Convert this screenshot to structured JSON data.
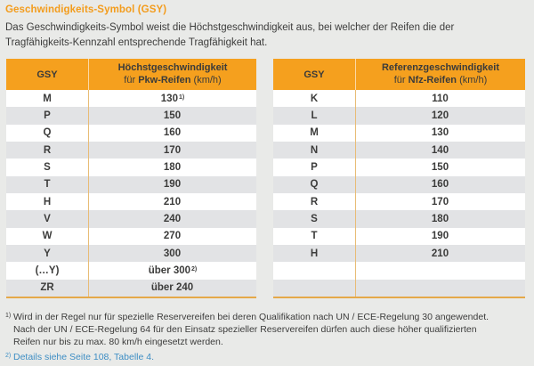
{
  "page": {
    "title": "Geschwindigkeits-Symbol (GSY)",
    "intro_line1": "Das Geschwindigkeits-Symbol weist die Höchstgeschwindigkeit aus, bei welcher der Reifen die der",
    "intro_line2": "Tragfähigkeits-Kennzahl entsprechende Tragfähigkeit hat."
  },
  "colors": {
    "accent_orange": "#F5A01E",
    "title_orange": "#F39C1C",
    "row_gray": "#E2E3E5",
    "row_white": "#FFFFFF",
    "table_bottom_border": "#E5A949",
    "link_blue": "#3E8EC4",
    "text_dark": "#3C3C3B",
    "page_background": "#E9EAE8"
  },
  "tables": [
    {
      "col1_header": "GSY",
      "col2_header_line1": "Höchstgeschwindigkeit",
      "col2_header_prefix": "für ",
      "col2_header_bold": "Pkw-Reifen",
      "col2_header_suffix": " (km/h)",
      "rows": [
        {
          "gsy": "M",
          "value": "130",
          "sup": "1)"
        },
        {
          "gsy": "P",
          "value": "150",
          "sup": ""
        },
        {
          "gsy": "Q",
          "value": "160",
          "sup": ""
        },
        {
          "gsy": "R",
          "value": "170",
          "sup": ""
        },
        {
          "gsy": "S",
          "value": "180",
          "sup": ""
        },
        {
          "gsy": "T",
          "value": "190",
          "sup": ""
        },
        {
          "gsy": "H",
          "value": "210",
          "sup": ""
        },
        {
          "gsy": "V",
          "value": "240",
          "sup": ""
        },
        {
          "gsy": "W",
          "value": "270",
          "sup": ""
        },
        {
          "gsy": "Y",
          "value": "300",
          "sup": ""
        },
        {
          "gsy": "(…Y)",
          "value": "über 300",
          "sup": "2)"
        },
        {
          "gsy": "ZR",
          "value": "über 240",
          "sup": ""
        }
      ]
    },
    {
      "col1_header": "GSY",
      "col2_header_line1": "Referenzgeschwindigkeit",
      "col2_header_prefix": "für ",
      "col2_header_bold": "Nfz-Reifen",
      "col2_header_suffix": " (km/h)",
      "rows": [
        {
          "gsy": "K",
          "value": "110",
          "sup": ""
        },
        {
          "gsy": "L",
          "value": "120",
          "sup": ""
        },
        {
          "gsy": "M",
          "value": "130",
          "sup": ""
        },
        {
          "gsy": "N",
          "value": "140",
          "sup": ""
        },
        {
          "gsy": "P",
          "value": "150",
          "sup": ""
        },
        {
          "gsy": "Q",
          "value": "160",
          "sup": ""
        },
        {
          "gsy": "R",
          "value": "170",
          "sup": ""
        },
        {
          "gsy": "S",
          "value": "180",
          "sup": ""
        },
        {
          "gsy": "T",
          "value": "190",
          "sup": ""
        },
        {
          "gsy": "H",
          "value": "210",
          "sup": ""
        },
        {
          "gsy": "",
          "value": "",
          "sup": ""
        },
        {
          "gsy": "",
          "value": "",
          "sup": ""
        }
      ]
    }
  ],
  "footnotes": {
    "fn1_marker": "1)",
    "fn1_lines": [
      "Wird in der Regel nur für spezielle Reservereifen bei deren Qualifikation nach UN / ECE-Regelung 30 angewendet.",
      "Nach der UN / ECE-Regelung 64 für den Einsatz spezieller Reservereifen dürfen auch diese höher qualifizierten",
      "Reifen nur bis zu max. 80 km/h eingesetzt werden."
    ],
    "fn2_marker": "2)",
    "fn2_text": "Details siehe Seite 108, Tabelle 4."
  }
}
